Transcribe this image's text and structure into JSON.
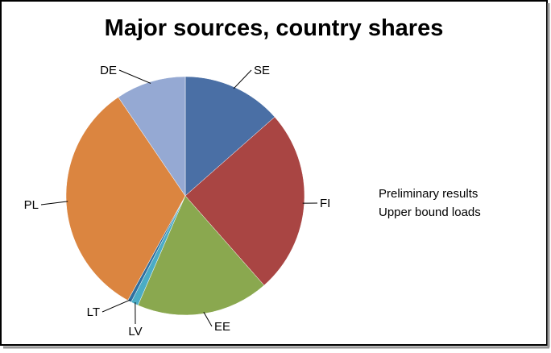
{
  "chart_data": {
    "type": "pie",
    "title": "Major sources, country shares",
    "categories": [
      "SE",
      "FI",
      "EE",
      "LV",
      "LT",
      "PL",
      "DE"
    ],
    "values": [
      13.5,
      25,
      18,
      1,
      0.5,
      32.5,
      9.5
    ],
    "colors": [
      "#4a6fa5",
      "#a94543",
      "#8aa84f",
      "#4bacc6",
      "#2f6f9f",
      "#db8540",
      "#95a9d3"
    ],
    "annotations": [
      "Preliminary results",
      "Upper bound loads"
    ]
  }
}
